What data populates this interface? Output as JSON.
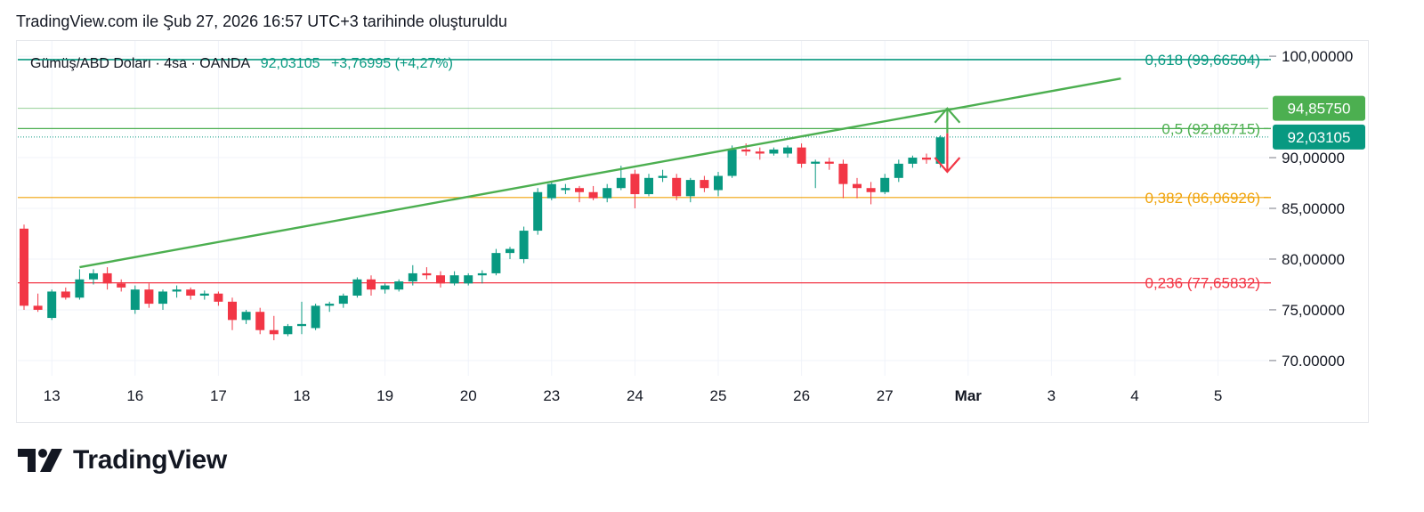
{
  "header": {
    "caption": "TradingView.com ile Şub 27, 2026 16:57 UTC+3 tarihinde oluşturuldu"
  },
  "symbol": {
    "name": "Gümüş/ABD Doları · 4sa · OANDA",
    "last": "92,03105",
    "change": "+3,76995 (+4,27%)"
  },
  "logo": {
    "text": "TradingView",
    "icon": "tradingview-logo-icon"
  },
  "colors": {
    "up": "#089981",
    "down": "#f23645",
    "trendline": "#4caf50",
    "fib_0618": "#089981",
    "fib_05": "#4caf50",
    "fib_0382": "#f0a30a",
    "fib_0236": "#f23645",
    "last_price_label": "#089981",
    "target_label": "#4caf50"
  },
  "chart_data": {
    "type": "candlestick",
    "title": "",
    "xlabel": "",
    "ylabel": "",
    "ylim": [
      68.5,
      101.5
    ],
    "grid": true,
    "y_ticks": [
      "100,00000",
      "90,00000",
      "85,00000",
      "80,00000",
      "75,00000",
      "70.00000"
    ],
    "y_tick_values": [
      100,
      90,
      85,
      80,
      75,
      70
    ],
    "x_ticks": [
      "13",
      "16",
      "17",
      "18",
      "19",
      "20",
      "23",
      "24",
      "25",
      "26",
      "27",
      "Mar",
      "3",
      "4",
      "5"
    ],
    "x_tick_index": [
      2,
      8,
      14,
      20,
      26,
      32,
      38,
      44,
      50,
      56,
      62,
      68,
      74,
      80,
      86
    ],
    "candles": [
      {
        "o": 83.0,
        "h": 83.4,
        "l": 75.0,
        "c": 75.4
      },
      {
        "o": 75.4,
        "h": 76.6,
        "l": 74.8,
        "c": 75.0
      },
      {
        "o": 74.2,
        "h": 77.0,
        "l": 74.0,
        "c": 76.8
      },
      {
        "o": 76.8,
        "h": 77.2,
        "l": 76.0,
        "c": 76.2
      },
      {
        "o": 76.2,
        "h": 79.0,
        "l": 76.0,
        "c": 78.0
      },
      {
        "o": 78.0,
        "h": 79.0,
        "l": 77.5,
        "c": 78.6
      },
      {
        "o": 78.6,
        "h": 79.2,
        "l": 77.0,
        "c": 77.6
      },
      {
        "o": 77.6,
        "h": 78.0,
        "l": 76.8,
        "c": 77.2
      },
      {
        "o": 75.0,
        "h": 77.4,
        "l": 74.6,
        "c": 77.0
      },
      {
        "o": 77.0,
        "h": 77.6,
        "l": 75.2,
        "c": 75.6
      },
      {
        "o": 75.6,
        "h": 77.0,
        "l": 75.0,
        "c": 76.8
      },
      {
        "o": 76.8,
        "h": 77.4,
        "l": 76.2,
        "c": 77.0
      },
      {
        "o": 77.0,
        "h": 77.2,
        "l": 76.0,
        "c": 76.4
      },
      {
        "o": 76.4,
        "h": 76.9,
        "l": 76.0,
        "c": 76.6
      },
      {
        "o": 76.6,
        "h": 76.8,
        "l": 75.4,
        "c": 75.8
      },
      {
        "o": 75.8,
        "h": 76.2,
        "l": 73.0,
        "c": 74.0
      },
      {
        "o": 74.0,
        "h": 75.0,
        "l": 73.6,
        "c": 74.8
      },
      {
        "o": 74.8,
        "h": 75.2,
        "l": 72.6,
        "c": 73.0
      },
      {
        "o": 73.0,
        "h": 74.4,
        "l": 72.0,
        "c": 72.6
      },
      {
        "o": 72.6,
        "h": 73.6,
        "l": 72.4,
        "c": 73.4
      },
      {
        "o": 73.4,
        "h": 75.8,
        "l": 72.6,
        "c": 73.6
      },
      {
        "o": 73.2,
        "h": 75.6,
        "l": 73.0,
        "c": 75.4
      },
      {
        "o": 75.4,
        "h": 75.8,
        "l": 74.8,
        "c": 75.6
      },
      {
        "o": 75.6,
        "h": 76.6,
        "l": 75.2,
        "c": 76.4
      },
      {
        "o": 76.4,
        "h": 78.2,
        "l": 76.2,
        "c": 78.0
      },
      {
        "o": 78.0,
        "h": 78.4,
        "l": 76.4,
        "c": 77.0
      },
      {
        "o": 77.0,
        "h": 77.6,
        "l": 76.6,
        "c": 77.4
      },
      {
        "o": 77.0,
        "h": 78.0,
        "l": 76.8,
        "c": 77.8
      },
      {
        "o": 77.8,
        "h": 79.4,
        "l": 77.4,
        "c": 78.6
      },
      {
        "o": 78.6,
        "h": 79.2,
        "l": 78.0,
        "c": 78.4
      },
      {
        "o": 78.4,
        "h": 78.8,
        "l": 77.2,
        "c": 77.6
      },
      {
        "o": 77.6,
        "h": 78.8,
        "l": 77.4,
        "c": 78.4
      },
      {
        "o": 77.6,
        "h": 78.6,
        "l": 77.4,
        "c": 78.4
      },
      {
        "o": 78.4,
        "h": 78.9,
        "l": 77.6,
        "c": 78.6
      },
      {
        "o": 78.6,
        "h": 81.0,
        "l": 78.4,
        "c": 80.6
      },
      {
        "o": 80.6,
        "h": 81.2,
        "l": 80.0,
        "c": 81.0
      },
      {
        "o": 80.0,
        "h": 83.2,
        "l": 79.6,
        "c": 82.8
      },
      {
        "o": 82.8,
        "h": 87.0,
        "l": 82.4,
        "c": 86.6
      },
      {
        "o": 86.0,
        "h": 87.6,
        "l": 85.8,
        "c": 87.4
      },
      {
        "o": 86.8,
        "h": 87.4,
        "l": 86.4,
        "c": 87.0
      },
      {
        "o": 87.0,
        "h": 87.2,
        "l": 85.6,
        "c": 86.6
      },
      {
        "o": 86.6,
        "h": 87.2,
        "l": 85.8,
        "c": 86.0
      },
      {
        "o": 86.0,
        "h": 87.4,
        "l": 85.6,
        "c": 87.0
      },
      {
        "o": 87.0,
        "h": 89.2,
        "l": 86.8,
        "c": 88.0
      },
      {
        "o": 88.4,
        "h": 88.8,
        "l": 85.0,
        "c": 86.4
      },
      {
        "o": 86.4,
        "h": 88.4,
        "l": 86.2,
        "c": 88.0
      },
      {
        "o": 88.0,
        "h": 88.8,
        "l": 87.6,
        "c": 88.2
      },
      {
        "o": 88.0,
        "h": 88.4,
        "l": 85.8,
        "c": 86.2
      },
      {
        "o": 86.2,
        "h": 88.0,
        "l": 85.6,
        "c": 87.8
      },
      {
        "o": 87.8,
        "h": 88.2,
        "l": 86.6,
        "c": 87.0
      },
      {
        "o": 86.8,
        "h": 88.6,
        "l": 86.2,
        "c": 88.2
      },
      {
        "o": 88.2,
        "h": 91.2,
        "l": 88.0,
        "c": 90.8
      },
      {
        "o": 90.8,
        "h": 91.4,
        "l": 90.2,
        "c": 90.6
      },
      {
        "o": 90.6,
        "h": 91.0,
        "l": 89.8,
        "c": 90.4
      },
      {
        "o": 90.4,
        "h": 91.0,
        "l": 90.2,
        "c": 90.8
      },
      {
        "o": 90.4,
        "h": 91.2,
        "l": 90.0,
        "c": 91.0
      },
      {
        "o": 91.0,
        "h": 91.4,
        "l": 89.0,
        "c": 89.4
      },
      {
        "o": 89.4,
        "h": 89.8,
        "l": 87.0,
        "c": 89.6
      },
      {
        "o": 89.6,
        "h": 90.0,
        "l": 88.8,
        "c": 89.4
      },
      {
        "o": 89.4,
        "h": 89.8,
        "l": 86.0,
        "c": 87.4
      },
      {
        "o": 87.4,
        "h": 88.0,
        "l": 86.0,
        "c": 87.0
      },
      {
        "o": 87.0,
        "h": 87.6,
        "l": 85.4,
        "c": 86.6
      },
      {
        "o": 86.6,
        "h": 88.4,
        "l": 86.4,
        "c": 88.0
      },
      {
        "o": 88.0,
        "h": 89.8,
        "l": 87.6,
        "c": 89.4
      },
      {
        "o": 89.4,
        "h": 90.2,
        "l": 89.0,
        "c": 90.0
      },
      {
        "o": 90.0,
        "h": 90.4,
        "l": 89.4,
        "c": 89.8
      },
      {
        "o": 89.4,
        "h": 92.2,
        "l": 89.0,
        "c": 92.0
      }
    ],
    "trendline": {
      "from": [
        4,
        79.2
      ],
      "to": [
        79,
        97.8
      ]
    },
    "fib_levels": [
      {
        "ratio": 0.618,
        "price": 99.66504,
        "label": "0,618 (99,66504)",
        "key": "fib_0618"
      },
      {
        "ratio": 0.5,
        "price": 92.86715,
        "label": "0,5 (92,86715)",
        "key": "fib_05"
      },
      {
        "ratio": 0.382,
        "price": 86.06926,
        "label": "0,382 (86,06926)",
        "key": "fib_0382"
      },
      {
        "ratio": 0.236,
        "price": 77.65832,
        "label": "0,236 (77,65832)",
        "key": "fib_0236"
      }
    ],
    "target": {
      "price": 94.8575,
      "label": "94,85750"
    },
    "last_price": {
      "price": 92.03105,
      "label": "92,03105"
    },
    "arrows": {
      "at_index": 66.5,
      "up_from": 92.4,
      "up_to": 94.85,
      "down_from": 92.4,
      "down_to": 88.6
    }
  }
}
